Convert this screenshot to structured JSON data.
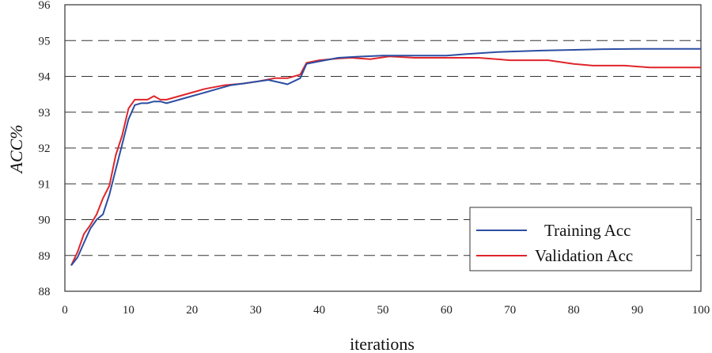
{
  "chart_data": {
    "type": "line",
    "xlabel": "iterations",
    "ylabel": "ACC%",
    "xlim": [
      0,
      100
    ],
    "ylim": [
      88,
      96
    ],
    "x_ticks": [
      0,
      10,
      20,
      30,
      40,
      50,
      60,
      70,
      80,
      90,
      100
    ],
    "y_ticks": [
      88,
      89,
      90,
      91,
      92,
      93,
      94,
      95,
      96
    ],
    "grid": "dashed horizontal",
    "legend_position": "bottom-right",
    "series": [
      {
        "name": "Training Acc",
        "color": "#2b4ea2",
        "points": [
          [
            1,
            88.72
          ],
          [
            2,
            88.95
          ],
          [
            3,
            89.35
          ],
          [
            4,
            89.75
          ],
          [
            5,
            90.0
          ],
          [
            6,
            90.15
          ],
          [
            7,
            90.7
          ],
          [
            8,
            91.4
          ],
          [
            9,
            92.1
          ],
          [
            10,
            92.8
          ],
          [
            11,
            93.2
          ],
          [
            12,
            93.25
          ],
          [
            13,
            93.25
          ],
          [
            14,
            93.3
          ],
          [
            15,
            93.3
          ],
          [
            16,
            93.25
          ],
          [
            18,
            93.35
          ],
          [
            20,
            93.45
          ],
          [
            22,
            93.55
          ],
          [
            24,
            93.65
          ],
          [
            26,
            93.75
          ],
          [
            28,
            93.8
          ],
          [
            30,
            93.85
          ],
          [
            32,
            93.9
          ],
          [
            34,
            93.82
          ],
          [
            35,
            93.78
          ],
          [
            37,
            93.95
          ],
          [
            38,
            94.35
          ],
          [
            40,
            94.42
          ],
          [
            43,
            94.52
          ],
          [
            46,
            94.55
          ],
          [
            50,
            94.58
          ],
          [
            55,
            94.58
          ],
          [
            60,
            94.58
          ],
          [
            63,
            94.62
          ],
          [
            68,
            94.68
          ],
          [
            75,
            94.72
          ],
          [
            80,
            94.74
          ],
          [
            85,
            94.76
          ],
          [
            90,
            94.77
          ],
          [
            95,
            94.77
          ],
          [
            100,
            94.77
          ]
        ]
      },
      {
        "name": "Validation Acc",
        "color": "#e0252b",
        "points": [
          [
            1,
            88.72
          ],
          [
            2,
            89.1
          ],
          [
            3,
            89.6
          ],
          [
            4,
            89.85
          ],
          [
            5,
            90.15
          ],
          [
            6,
            90.6
          ],
          [
            7,
            90.95
          ],
          [
            8,
            91.8
          ],
          [
            9,
            92.35
          ],
          [
            10,
            93.1
          ],
          [
            11,
            93.35
          ],
          [
            12,
            93.35
          ],
          [
            13,
            93.35
          ],
          [
            14,
            93.45
          ],
          [
            15,
            93.35
          ],
          [
            16,
            93.35
          ],
          [
            18,
            93.45
          ],
          [
            20,
            93.55
          ],
          [
            22,
            93.65
          ],
          [
            25,
            93.75
          ],
          [
            28,
            93.8
          ],
          [
            30,
            93.85
          ],
          [
            33,
            93.95
          ],
          [
            35,
            93.95
          ],
          [
            37,
            94.05
          ],
          [
            38,
            94.38
          ],
          [
            40,
            94.45
          ],
          [
            43,
            94.5
          ],
          [
            45,
            94.52
          ],
          [
            48,
            94.48
          ],
          [
            51,
            94.56
          ],
          [
            55,
            94.52
          ],
          [
            60,
            94.52
          ],
          [
            65,
            94.52
          ],
          [
            70,
            94.45
          ],
          [
            76,
            94.45
          ],
          [
            80,
            94.35
          ],
          [
            83,
            94.3
          ],
          [
            88,
            94.3
          ],
          [
            92,
            94.25
          ],
          [
            96,
            94.25
          ],
          [
            100,
            94.25
          ]
        ]
      }
    ]
  }
}
